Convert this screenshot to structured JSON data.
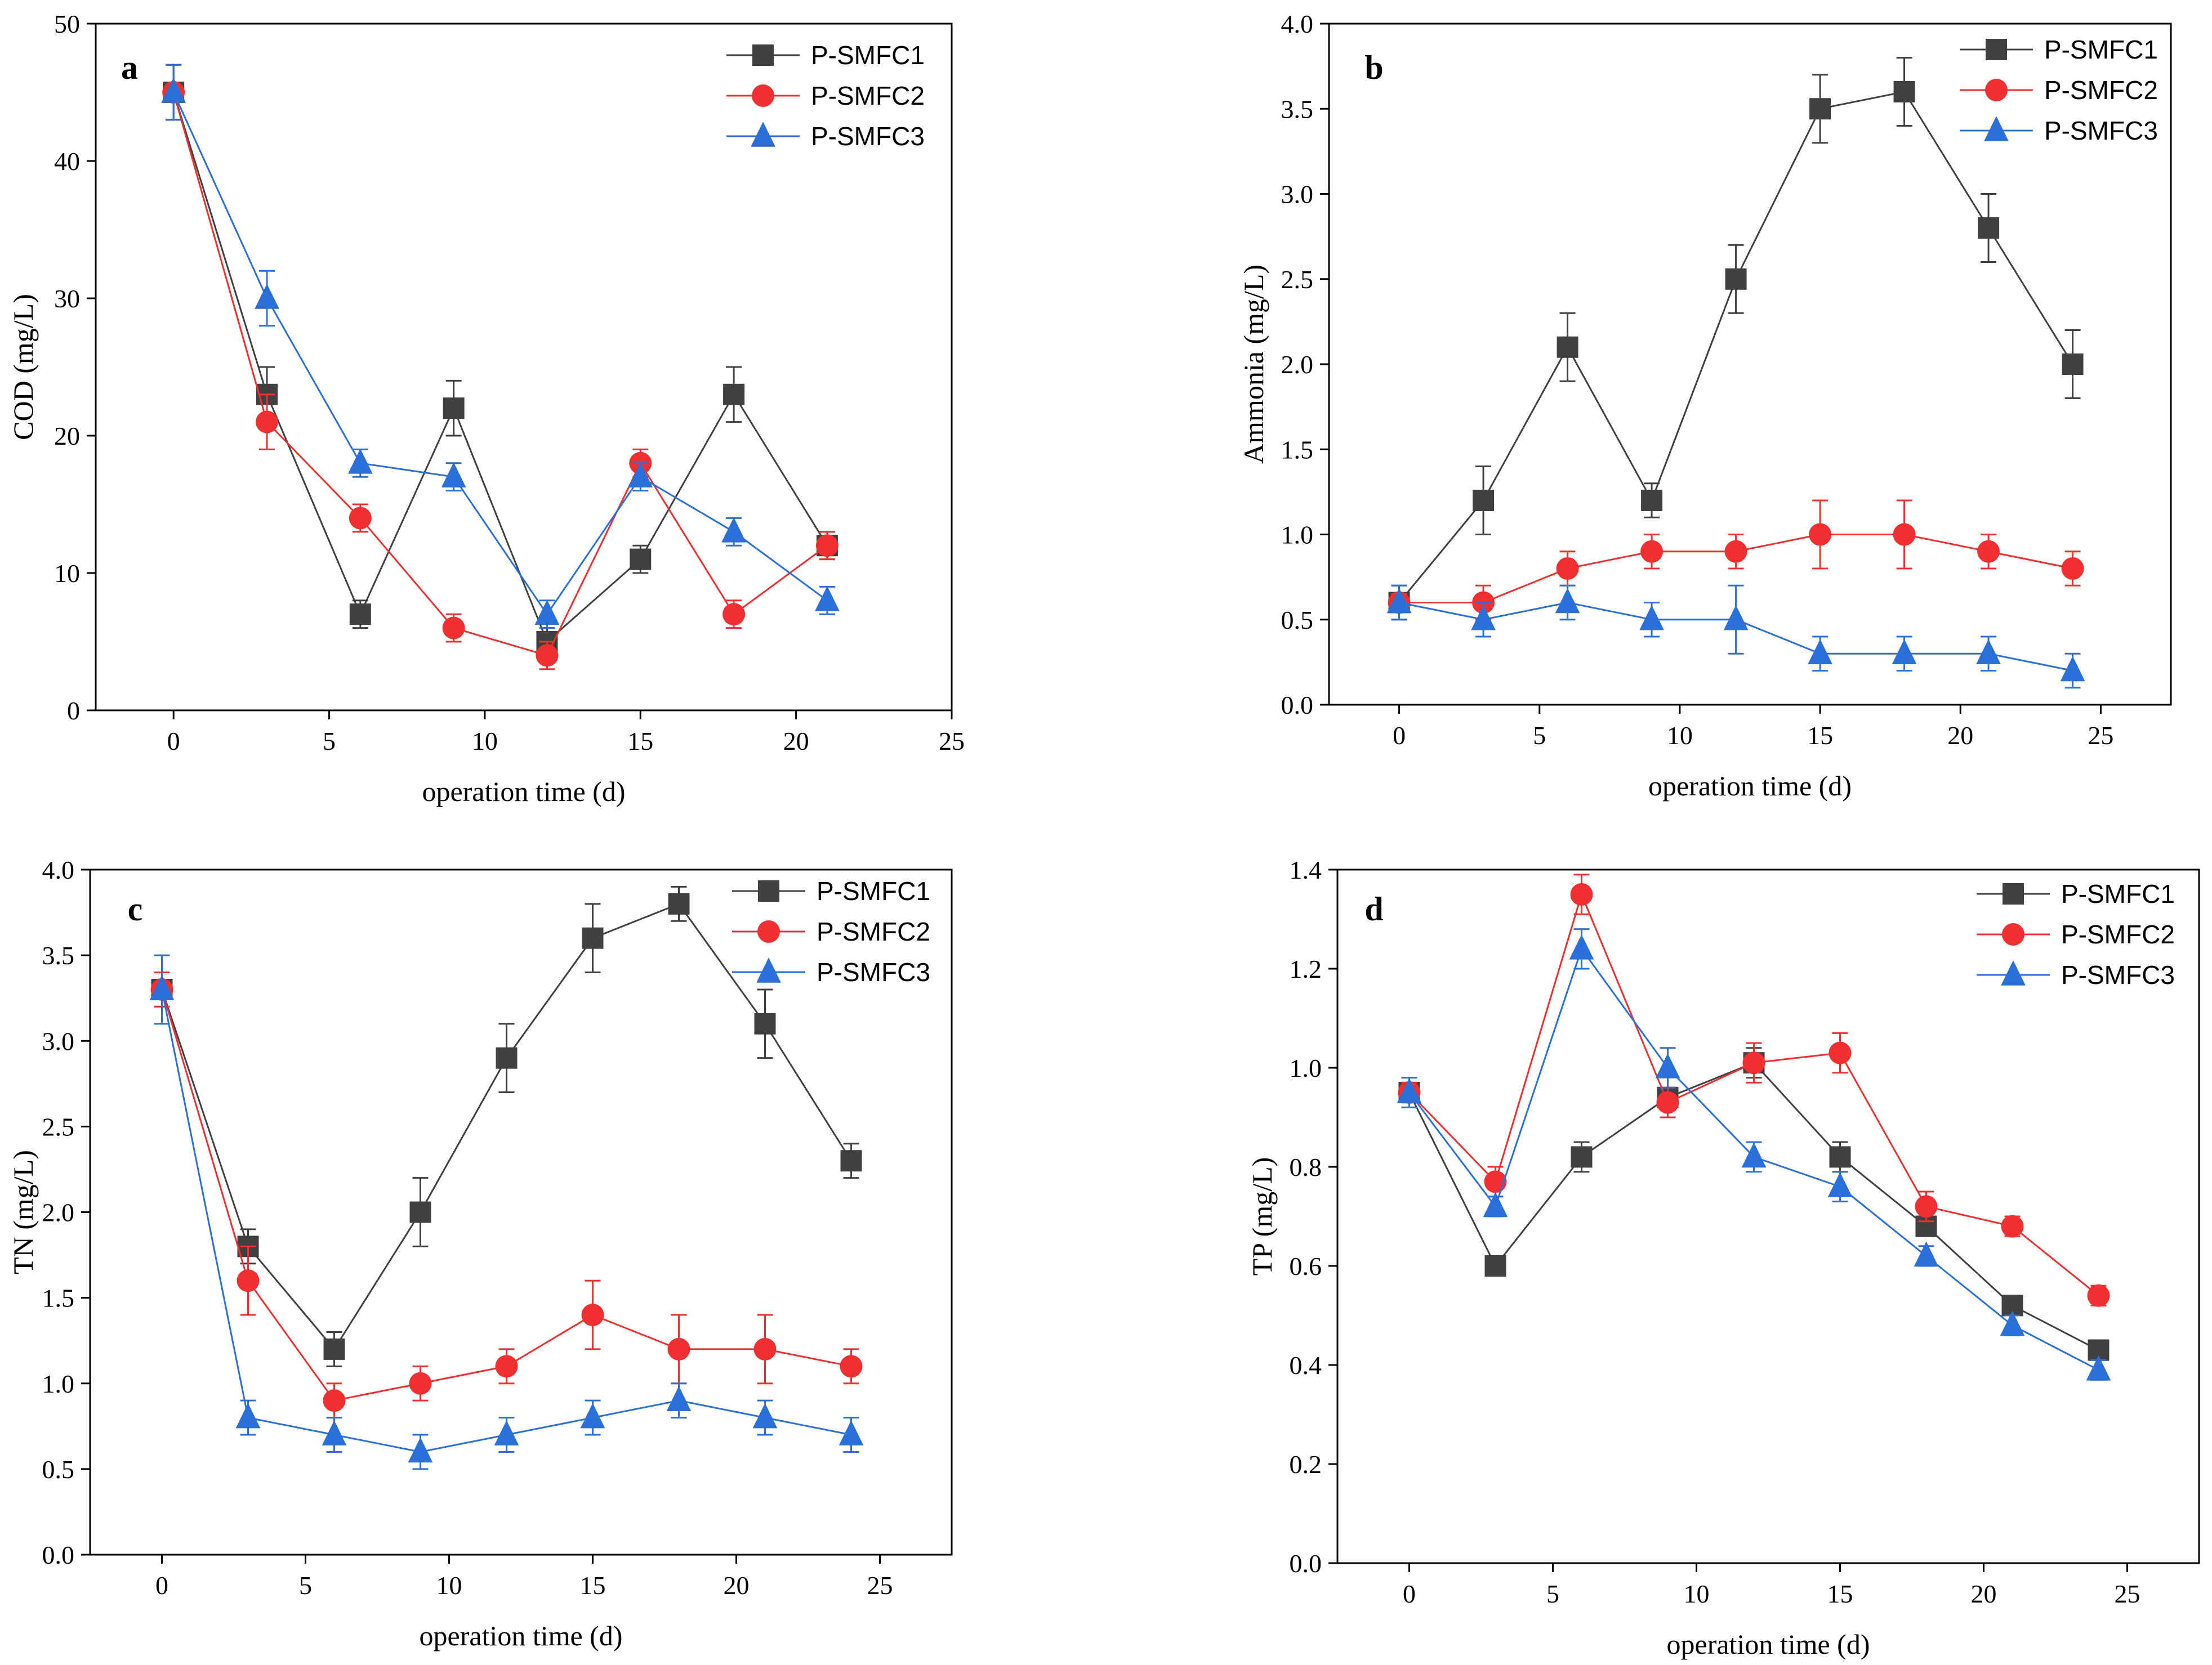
{
  "chart_data": [
    {
      "type": "line",
      "panel": "a",
      "xlabel": "operation time (d)",
      "ylabel": "COD (mg/L)",
      "xlim": [
        -2.5,
        25
      ],
      "ylim": [
        0,
        50
      ],
      "xticks": [
        0,
        5,
        10,
        15,
        20,
        25
      ],
      "xtick_labels": [
        "0",
        "5",
        "10",
        "15",
        "20",
        "25"
      ],
      "yticks": [
        0,
        10,
        20,
        30,
        40,
        50
      ],
      "ytick_labels": [
        "0",
        "10",
        "20",
        "30",
        "40",
        "50"
      ],
      "grid": false,
      "legend": "top-right",
      "series": [
        {
          "name": "P-SMFC1",
          "color": "#404040",
          "marker": "square",
          "x": [
            0,
            3,
            6,
            9,
            12,
            15,
            18,
            21
          ],
          "y": [
            45,
            23,
            7,
            22,
            5,
            11,
            23,
            12
          ],
          "err": [
            2,
            2,
            1,
            2,
            1,
            1,
            2,
            1
          ]
        },
        {
          "name": "P-SMFC2",
          "color": "#f03030",
          "marker": "circle",
          "x": [
            0,
            3,
            6,
            9,
            12,
            15,
            18,
            21
          ],
          "y": [
            45,
            21,
            14,
            6,
            4,
            18,
            7,
            12
          ],
          "err": [
            2,
            2,
            1,
            1,
            1,
            1,
            1,
            1
          ]
        },
        {
          "name": "P-SMFC3",
          "color": "#2a70d8",
          "marker": "triangle",
          "x": [
            0,
            3,
            6,
            9,
            12,
            15,
            18,
            21
          ],
          "y": [
            45,
            30,
            18,
            17,
            7,
            17,
            13,
            8
          ],
          "err": [
            2,
            2,
            1,
            1,
            1,
            1,
            1,
            1
          ]
        }
      ]
    },
    {
      "type": "line",
      "panel": "b",
      "xlabel": "operation time (d)",
      "ylabel": "Ammonia (mg/L)",
      "xlim": [
        -2.5,
        27.5
      ],
      "ylim": [
        0,
        4
      ],
      "xticks": [
        0,
        5,
        10,
        15,
        20,
        25
      ],
      "xtick_labels": [
        "0",
        "5",
        "10",
        "15",
        "20",
        "25"
      ],
      "yticks": [
        0,
        0.5,
        1,
        1.5,
        2,
        2.5,
        3,
        3.5,
        4
      ],
      "ytick_labels": [
        "0.0",
        "0.5",
        "1.0",
        "1.5",
        "2.0",
        "2.5",
        "3.0",
        "3.5",
        "4.0"
      ],
      "grid": false,
      "legend": "top-right",
      "series": [
        {
          "name": "P-SMFC1",
          "color": "#404040",
          "marker": "square",
          "x": [
            0,
            3,
            6,
            9,
            12,
            15,
            18,
            21,
            24
          ],
          "y": [
            0.6,
            1.2,
            2.1,
            1.2,
            2.5,
            3.5,
            3.6,
            2.8,
            2.0
          ],
          "err": [
            0.1,
            0.2,
            0.2,
            0.1,
            0.2,
            0.2,
            0.2,
            0.2,
            0.2
          ]
        },
        {
          "name": "P-SMFC2",
          "color": "#f03030",
          "marker": "circle",
          "x": [
            0,
            3,
            6,
            9,
            12,
            15,
            18,
            21,
            24
          ],
          "y": [
            0.6,
            0.6,
            0.8,
            0.9,
            0.9,
            1.0,
            1.0,
            0.9,
            0.8
          ],
          "err": [
            0.05,
            0.1,
            0.1,
            0.1,
            0.1,
            0.2,
            0.2,
            0.1,
            0.1
          ]
        },
        {
          "name": "P-SMFC3",
          "color": "#2a70d8",
          "marker": "triangle",
          "x": [
            0,
            3,
            6,
            9,
            12,
            15,
            18,
            21,
            24
          ],
          "y": [
            0.6,
            0.5,
            0.6,
            0.5,
            0.5,
            0.3,
            0.3,
            0.3,
            0.2
          ],
          "err": [
            0.1,
            0.1,
            0.1,
            0.1,
            0.2,
            0.1,
            0.1,
            0.1,
            0.1
          ]
        }
      ]
    },
    {
      "type": "line",
      "panel": "c",
      "xlabel": "operation time (d)",
      "ylabel": "TN (mg/L)",
      "xlim": [
        -2.5,
        27.5
      ],
      "ylim": [
        0,
        4
      ],
      "xticks": [
        0,
        5,
        10,
        15,
        20,
        25
      ],
      "xtick_labels": [
        "0",
        "5",
        "10",
        "15",
        "20",
        "25"
      ],
      "yticks": [
        0,
        0.5,
        1,
        1.5,
        2,
        2.5,
        3,
        3.5,
        4
      ],
      "ytick_labels": [
        "0.0",
        "0.5",
        "1.0",
        "1.5",
        "2.0",
        "2.5",
        "3.0",
        "3.5",
        "4.0"
      ],
      "grid": false,
      "legend": "top-right",
      "series": [
        {
          "name": "P-SMFC1",
          "color": "#404040",
          "marker": "square",
          "x": [
            0,
            3,
            6,
            9,
            12,
            15,
            18,
            21,
            24
          ],
          "y": [
            3.3,
            1.8,
            1.2,
            2.0,
            2.9,
            3.6,
            3.8,
            3.1,
            2.3
          ],
          "err": [
            0.1,
            0.1,
            0.1,
            0.2,
            0.2,
            0.2,
            0.1,
            0.2,
            0.1
          ]
        },
        {
          "name": "P-SMFC2",
          "color": "#f03030",
          "marker": "circle",
          "x": [
            0,
            3,
            6,
            9,
            12,
            15,
            18,
            21,
            24
          ],
          "y": [
            3.3,
            1.6,
            0.9,
            1.0,
            1.1,
            1.4,
            1.2,
            1.2,
            1.1
          ],
          "err": [
            0.1,
            0.2,
            0.1,
            0.1,
            0.1,
            0.2,
            0.2,
            0.2,
            0.1
          ]
        },
        {
          "name": "P-SMFC3",
          "color": "#2a70d8",
          "marker": "triangle",
          "x": [
            0,
            3,
            6,
            9,
            12,
            15,
            18,
            21,
            24
          ],
          "y": [
            3.3,
            0.8,
            0.7,
            0.6,
            0.7,
            0.8,
            0.9,
            0.8,
            0.7
          ],
          "err": [
            0.2,
            0.1,
            0.1,
            0.1,
            0.1,
            0.1,
            0.1,
            0.1,
            0.1
          ]
        }
      ]
    },
    {
      "type": "line",
      "panel": "d",
      "xlabel": "operation time (d)",
      "ylabel": "TP (mg/L)",
      "xlim": [
        -2.5,
        27.5
      ],
      "ylim": [
        0,
        1.4
      ],
      "xticks": [
        0,
        5,
        10,
        15,
        20,
        25
      ],
      "xtick_labels": [
        "0",
        "5",
        "10",
        "15",
        "20",
        "25"
      ],
      "yticks": [
        0,
        0.2,
        0.4,
        0.6,
        0.8,
        1.0,
        1.2,
        1.4
      ],
      "ytick_labels": [
        "0.0",
        "0.2",
        "0.4",
        "0.6",
        "0.8",
        "1.0",
        "1.2",
        "1.4"
      ],
      "grid": false,
      "legend": "top-right",
      "series": [
        {
          "name": "P-SMFC1",
          "color": "#404040",
          "marker": "square",
          "x": [
            0,
            3,
            6,
            9,
            12,
            15,
            18,
            21,
            24
          ],
          "y": [
            0.95,
            0.6,
            0.82,
            0.94,
            1.01,
            0.82,
            0.68,
            0.52,
            0.43
          ],
          "err": [
            0.02,
            0.01,
            0.03,
            0.02,
            0.03,
            0.03,
            0.02,
            0.02,
            0.02
          ]
        },
        {
          "name": "P-SMFC2",
          "color": "#f03030",
          "marker": "circle",
          "x": [
            0,
            3,
            6,
            9,
            12,
            15,
            18,
            21,
            24
          ],
          "y": [
            0.95,
            0.77,
            1.35,
            0.93,
            1.01,
            1.03,
            0.72,
            0.68,
            0.54
          ],
          "err": [
            0.02,
            0.03,
            0.04,
            0.03,
            0.04,
            0.04,
            0.03,
            0.02,
            0.02
          ]
        },
        {
          "name": "P-SMFC3",
          "color": "#2a70d8",
          "marker": "triangle",
          "x": [
            0,
            3,
            6,
            9,
            12,
            15,
            18,
            21,
            24
          ],
          "y": [
            0.95,
            0.72,
            1.24,
            1.0,
            0.82,
            0.76,
            0.62,
            0.48,
            0.39
          ],
          "err": [
            0.03,
            0.02,
            0.04,
            0.04,
            0.03,
            0.03,
            0.02,
            0.02,
            0.02
          ]
        }
      ]
    }
  ]
}
